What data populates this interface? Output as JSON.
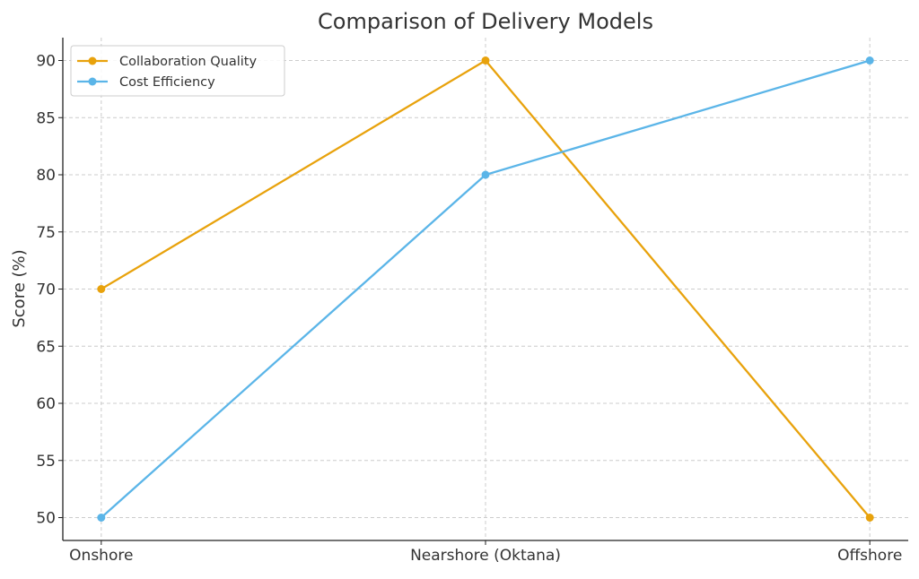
{
  "chart_data": {
    "type": "line",
    "title": "Comparison of Delivery Models",
    "xlabel": "",
    "ylabel": "Score (%)",
    "categories": [
      "Onshore",
      "Nearshore (Oktana)",
      "Offshore"
    ],
    "series": [
      {
        "name": "Collaboration Quality",
        "values": [
          70,
          90,
          50
        ],
        "color": "#E8A20C"
      },
      {
        "name": "Cost Efficiency",
        "values": [
          50,
          80,
          90
        ],
        "color": "#5BB5E8"
      }
    ],
    "ylim": [
      48,
      92
    ],
    "yticks": [
      50,
      55,
      60,
      65,
      70,
      75,
      80,
      85,
      90
    ],
    "grid": true,
    "legend": "top-left",
    "marker": "circle"
  }
}
